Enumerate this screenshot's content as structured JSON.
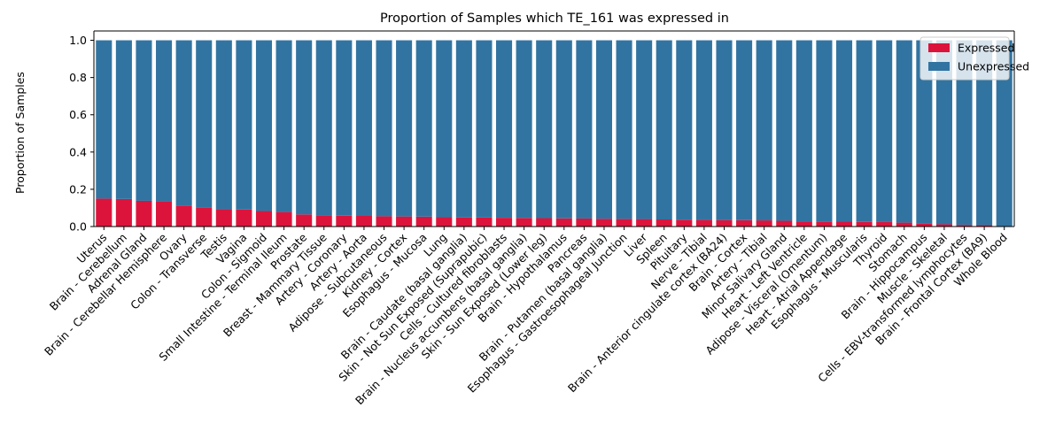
{
  "chart_data": {
    "type": "bar",
    "stacked": true,
    "title": "Proportion of Samples which TE_161 was expressed in",
    "xlabel": "",
    "ylabel": "Proportion of Samples",
    "ylim": [
      0,
      1.05
    ],
    "yticks": [
      0.0,
      0.2,
      0.4,
      0.6,
      0.8,
      1.0
    ],
    "ytick_labels": [
      "0.0",
      "0.2",
      "0.4",
      "0.6",
      "0.8",
      "1.0"
    ],
    "grid": false,
    "legend_position": "top-right",
    "categories": [
      "Uterus",
      "Brain - Cerebellum",
      "Adrenal Gland",
      "Brain - Cerebellar Hemisphere",
      "Ovary",
      "Colon - Transverse",
      "Testis",
      "Vagina",
      "Colon - Sigmoid",
      "Small Intestine - Terminal Ileum",
      "Prostate",
      "Breast - Mammary Tissue",
      "Artery - Coronary",
      "Artery - Aorta",
      "Adipose - Subcutaneous",
      "Kidney - Cortex",
      "Esophagus - Mucosa",
      "Lung",
      "Brain - Caudate (basal ganglia)",
      "Skin - Not Sun Exposed (Suprapubic)",
      "Cells - Cultured fibroblasts",
      "Brain - Nucleus accumbens (basal ganglia)",
      "Skin - Sun Exposed (Lower leg)",
      "Brain - Hypothalamus",
      "Pancreas",
      "Brain - Putamen (basal ganglia)",
      "Esophagus - Gastroesophageal Junction",
      "Liver",
      "Spleen",
      "Pituitary",
      "Nerve - Tibial",
      "Brain - Anterior cingulate cortex (BA24)",
      "Brain - Cortex",
      "Artery - Tibial",
      "Minor Salivary Gland",
      "Heart - Left Ventricle",
      "Adipose - Visceral (Omentum)",
      "Heart - Atrial Appendage",
      "Esophagus - Muscularis",
      "Thyroid",
      "Stomach",
      "Brain - Hippocampus",
      "Muscle - Skeletal",
      "Cells - EBV-transformed lymphocytes",
      "Brain - Frontal Cortex (BA9)",
      "Whole Blood"
    ],
    "series": [
      {
        "name": "Expressed",
        "color": "#dc143c",
        "values": [
          0.15,
          0.148,
          0.138,
          0.135,
          0.113,
          0.103,
          0.093,
          0.091,
          0.083,
          0.078,
          0.065,
          0.06,
          0.058,
          0.057,
          0.055,
          0.054,
          0.053,
          0.05,
          0.049,
          0.048,
          0.047,
          0.046,
          0.045,
          0.044,
          0.043,
          0.042,
          0.041,
          0.04,
          0.038,
          0.037,
          0.036,
          0.035,
          0.034,
          0.033,
          0.031,
          0.028,
          0.027,
          0.026,
          0.025,
          0.024,
          0.021,
          0.016,
          0.012,
          0.009,
          0.007,
          0.0
        ]
      },
      {
        "name": "Unexpressed",
        "color": "#3274a1",
        "values": [
          0.85,
          0.852,
          0.862,
          0.865,
          0.887,
          0.897,
          0.907,
          0.909,
          0.917,
          0.922,
          0.935,
          0.94,
          0.942,
          0.943,
          0.945,
          0.946,
          0.947,
          0.95,
          0.951,
          0.952,
          0.953,
          0.954,
          0.955,
          0.956,
          0.957,
          0.958,
          0.959,
          0.96,
          0.962,
          0.963,
          0.964,
          0.965,
          0.966,
          0.967,
          0.969,
          0.972,
          0.973,
          0.974,
          0.975,
          0.976,
          0.979,
          0.984,
          0.988,
          0.991,
          0.993,
          1.0
        ]
      }
    ]
  }
}
